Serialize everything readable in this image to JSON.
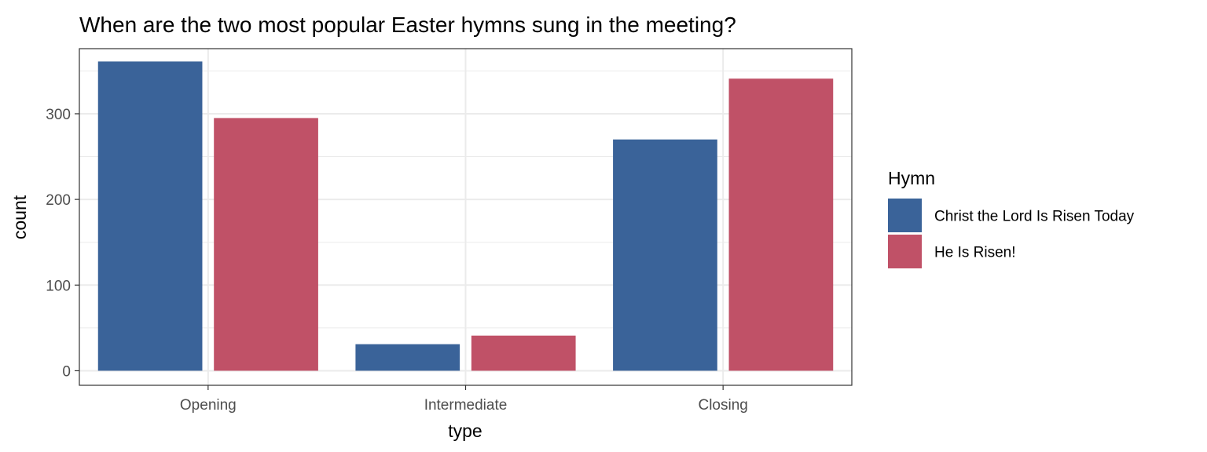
{
  "chart_data": {
    "type": "bar",
    "title": "When are the two most popular Easter hymns sung in the meeting?",
    "xlabel": "type",
    "ylabel": "count",
    "categories": [
      "Opening",
      "Intermediate",
      "Closing"
    ],
    "series": [
      {
        "name": "Christ the Lord Is Risen Today",
        "color": "#3a6399",
        "values": [
          361,
          31,
          270
        ]
      },
      {
        "name": "He Is Risen!",
        "color": "#c05167",
        "values": [
          295,
          41,
          341
        ]
      }
    ],
    "ylim": [
      -17,
      376
    ],
    "yticks": [
      0,
      100,
      200,
      300
    ],
    "grid": true,
    "legend": {
      "title": "Hymn",
      "position": "right"
    }
  }
}
